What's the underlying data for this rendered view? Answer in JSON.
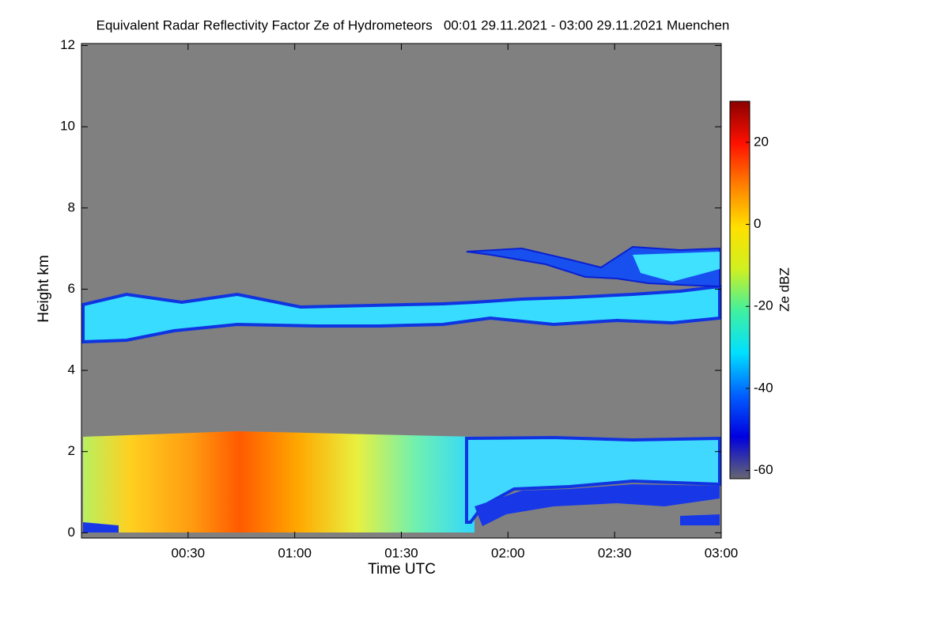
{
  "chart_data": {
    "type": "heatmap",
    "title": "Equivalent Radar Reflectivity Factor Ze of Hydrometeors   00:01 29.11.2021 - 03:00 29.11.2021 Muenchen",
    "x_label": "Time UTC",
    "y_label": "Height km",
    "xlim": [
      0,
      180
    ],
    "xticks": [
      {
        "value": 30,
        "label": "00:30"
      },
      {
        "value": 60,
        "label": "01:00"
      },
      {
        "value": 90,
        "label": "01:30"
      },
      {
        "value": 120,
        "label": "02:00"
      },
      {
        "value": 150,
        "label": "02:30"
      },
      {
        "value": 180,
        "label": "03:00"
      }
    ],
    "ylim": [
      -0.13,
      12.05
    ],
    "yticks": [
      0,
      2,
      4,
      6,
      8,
      10,
      12
    ],
    "colorbar": {
      "label": "Ze dBZ",
      "lim": [
        -62,
        30
      ],
      "ticks": [
        -60,
        -40,
        -20,
        0,
        20
      ],
      "colors": [
        "#666670",
        "#0000e0",
        "#0060ff",
        "#00e0ff",
        "#40f0a0",
        "#d0f020",
        "#ffe000",
        "#ff8000",
        "#ff1000",
        "#8b0000"
      ]
    },
    "background": "#808080"
  }
}
